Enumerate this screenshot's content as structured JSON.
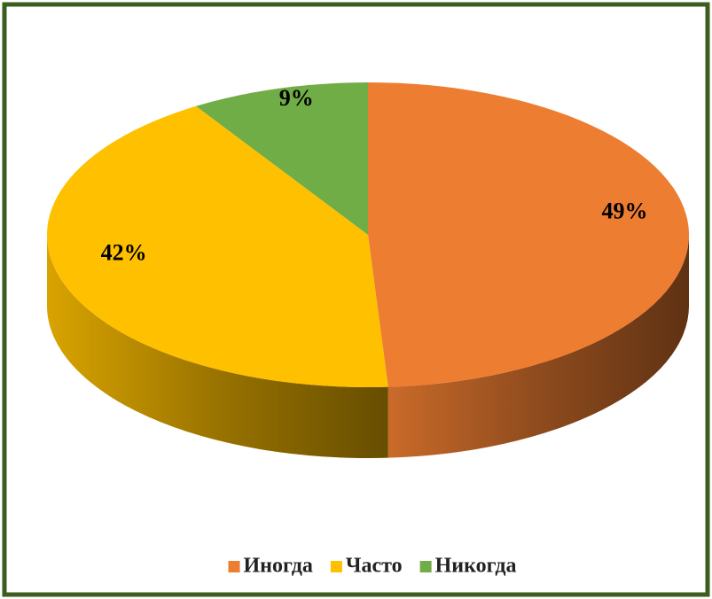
{
  "chart_data": {
    "type": "pie",
    "categories": [
      "Иногда",
      "Часто",
      "Никогда"
    ],
    "values": [
      49,
      42,
      9
    ],
    "value_labels": [
      "49%",
      "42%",
      "9%"
    ],
    "colors": [
      "#ED7D31",
      "#FFC000",
      "#70AD47"
    ],
    "legend": "bottom"
  }
}
